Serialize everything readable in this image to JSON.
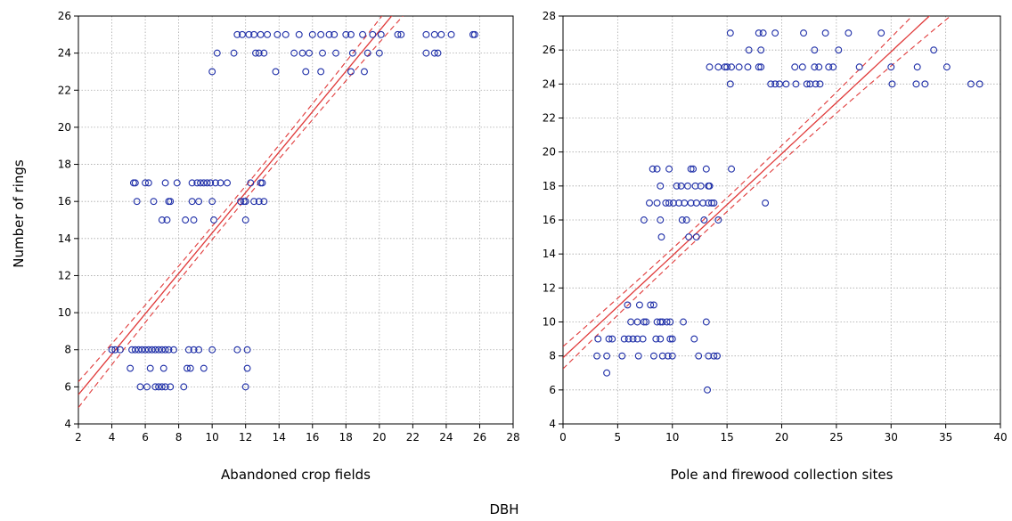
{
  "figure": {
    "ylabel": "Number of rings",
    "xlabel": "DBH"
  },
  "chart_data": [
    {
      "type": "scatter",
      "xlabel": "Abandoned crop fields",
      "ylabel": "Number of rings",
      "xlim": [
        2,
        28
      ],
      "ylim": [
        4,
        26
      ],
      "xticks": [
        2,
        4,
        6,
        8,
        10,
        12,
        14,
        16,
        18,
        20,
        22,
        24,
        26,
        28
      ],
      "yticks": [
        4,
        6,
        8,
        10,
        12,
        14,
        16,
        18,
        20,
        22,
        24,
        26
      ],
      "grid": true,
      "point_color": "#1f2fa8",
      "fit_color": "#e03a3a",
      "fit": {
        "intercept": 3.4,
        "slope": 1.09,
        "ci_offset_at_ends": 1.4,
        "ci_offset_at_mean": 0.35,
        "x_mean": 11.5
      },
      "points": [
        [
          4.0,
          8
        ],
        [
          4.2,
          8
        ],
        [
          4.5,
          8
        ],
        [
          5.2,
          8
        ],
        [
          5.4,
          8
        ],
        [
          5.6,
          8
        ],
        [
          5.8,
          8
        ],
        [
          6.0,
          8
        ],
        [
          6.2,
          8
        ],
        [
          6.4,
          8
        ],
        [
          6.6,
          8
        ],
        [
          6.8,
          8
        ],
        [
          7.0,
          8
        ],
        [
          7.2,
          8
        ],
        [
          7.4,
          8
        ],
        [
          7.7,
          8
        ],
        [
          8.6,
          8
        ],
        [
          8.9,
          8
        ],
        [
          9.2,
          8
        ],
        [
          10.0,
          8
        ],
        [
          11.5,
          8
        ],
        [
          12.1,
          8
        ],
        [
          5.1,
          7
        ],
        [
          6.3,
          7
        ],
        [
          7.1,
          7
        ],
        [
          8.5,
          7
        ],
        [
          8.7,
          7
        ],
        [
          9.5,
          7
        ],
        [
          12.1,
          7
        ],
        [
          5.7,
          6
        ],
        [
          6.1,
          6
        ],
        [
          6.6,
          6
        ],
        [
          6.8,
          6
        ],
        [
          7.0,
          6
        ],
        [
          7.2,
          6
        ],
        [
          7.5,
          6
        ],
        [
          8.3,
          6
        ],
        [
          12.0,
          6
        ],
        [
          5.3,
          17
        ],
        [
          5.4,
          17
        ],
        [
          6.0,
          17
        ],
        [
          6.2,
          17
        ],
        [
          7.2,
          17
        ],
        [
          7.9,
          17
        ],
        [
          8.8,
          17
        ],
        [
          9.1,
          17
        ],
        [
          9.3,
          17
        ],
        [
          9.5,
          17
        ],
        [
          9.7,
          17
        ],
        [
          9.9,
          17
        ],
        [
          10.2,
          17
        ],
        [
          10.5,
          17
        ],
        [
          10.9,
          17
        ],
        [
          12.3,
          17
        ],
        [
          12.9,
          17
        ],
        [
          13.0,
          17
        ],
        [
          5.5,
          16
        ],
        [
          6.5,
          16
        ],
        [
          7.4,
          16
        ],
        [
          7.5,
          16
        ],
        [
          8.8,
          16
        ],
        [
          9.2,
          16
        ],
        [
          10.0,
          16
        ],
        [
          11.7,
          16
        ],
        [
          11.9,
          16
        ],
        [
          12.0,
          16
        ],
        [
          12.5,
          16
        ],
        [
          12.8,
          16
        ],
        [
          13.1,
          16
        ],
        [
          7.0,
          15
        ],
        [
          7.3,
          15
        ],
        [
          8.4,
          15
        ],
        [
          8.9,
          15
        ],
        [
          10.1,
          15
        ],
        [
          12.0,
          15
        ],
        [
          10.0,
          23
        ],
        [
          13.8,
          23
        ],
        [
          15.6,
          23
        ],
        [
          16.5,
          23
        ],
        [
          18.3,
          23
        ],
        [
          19.1,
          23
        ],
        [
          10.3,
          24
        ],
        [
          11.3,
          24
        ],
        [
          12.6,
          24
        ],
        [
          12.8,
          24
        ],
        [
          13.1,
          24
        ],
        [
          14.9,
          24
        ],
        [
          15.4,
          24
        ],
        [
          15.8,
          24
        ],
        [
          16.6,
          24
        ],
        [
          17.4,
          24
        ],
        [
          18.4,
          24
        ],
        [
          19.3,
          24
        ],
        [
          20.0,
          24
        ],
        [
          22.8,
          24
        ],
        [
          23.3,
          24
        ],
        [
          23.5,
          24
        ],
        [
          11.5,
          25
        ],
        [
          11.8,
          25
        ],
        [
          12.2,
          25
        ],
        [
          12.5,
          25
        ],
        [
          12.9,
          25
        ],
        [
          13.3,
          25
        ],
        [
          13.9,
          25
        ],
        [
          14.4,
          25
        ],
        [
          15.2,
          25
        ],
        [
          16.0,
          25
        ],
        [
          16.5,
          25
        ],
        [
          17.0,
          25
        ],
        [
          17.3,
          25
        ],
        [
          18.0,
          25
        ],
        [
          18.3,
          25
        ],
        [
          19.0,
          25
        ],
        [
          19.6,
          25
        ],
        [
          20.1,
          25
        ],
        [
          21.1,
          25
        ],
        [
          21.3,
          25
        ],
        [
          22.8,
          25
        ],
        [
          23.3,
          25
        ],
        [
          23.7,
          25
        ],
        [
          24.3,
          25
        ],
        [
          25.6,
          25
        ],
        [
          25.7,
          25
        ]
      ]
    },
    {
      "type": "scatter",
      "xlabel": "Pole and firewood collection sites",
      "ylabel": "",
      "xlim": [
        0,
        40
      ],
      "ylim": [
        4,
        28
      ],
      "xticks": [
        0,
        5,
        10,
        15,
        20,
        25,
        30,
        35,
        40
      ],
      "yticks": [
        4,
        6,
        8,
        10,
        12,
        14,
        16,
        18,
        20,
        22,
        24,
        26,
        28
      ],
      "grid": true,
      "point_color": "#1f2fa8",
      "fit_color": "#e03a3a",
      "fit": {
        "intercept": 7.9,
        "slope": 0.6,
        "ci_offset_at_ends": 1.5,
        "ci_offset_at_mean": 0.4,
        "x_mean": 13.0
      },
      "points": [
        [
          3.2,
          9
        ],
        [
          4.2,
          9
        ],
        [
          4.5,
          9
        ],
        [
          5.6,
          9
        ],
        [
          6.0,
          9
        ],
        [
          6.4,
          9
        ],
        [
          6.8,
          9
        ],
        [
          7.3,
          9
        ],
        [
          8.5,
          9
        ],
        [
          8.9,
          9
        ],
        [
          9.8,
          9
        ],
        [
          10.0,
          9
        ],
        [
          12.0,
          9
        ],
        [
          3.1,
          8
        ],
        [
          4.0,
          8
        ],
        [
          5.4,
          8
        ],
        [
          6.9,
          8
        ],
        [
          8.3,
          8
        ],
        [
          9.1,
          8
        ],
        [
          9.6,
          8
        ],
        [
          10.0,
          8
        ],
        [
          12.4,
          8
        ],
        [
          13.3,
          8
        ],
        [
          13.8,
          8
        ],
        [
          14.1,
          8
        ],
        [
          4.0,
          7
        ],
        [
          13.2,
          6
        ],
        [
          6.2,
          10
        ],
        [
          6.8,
          10
        ],
        [
          7.4,
          10
        ],
        [
          7.6,
          10
        ],
        [
          8.6,
          10
        ],
        [
          8.9,
          10
        ],
        [
          9.1,
          10
        ],
        [
          9.5,
          10
        ],
        [
          9.8,
          10
        ],
        [
          11.0,
          10
        ],
        [
          13.1,
          10
        ],
        [
          5.9,
          11
        ],
        [
          7.0,
          11
        ],
        [
          8.0,
          11
        ],
        [
          8.3,
          11
        ],
        [
          8.2,
          19
        ],
        [
          8.6,
          19
        ],
        [
          9.7,
          19
        ],
        [
          11.7,
          19
        ],
        [
          11.9,
          19
        ],
        [
          13.1,
          19
        ],
        [
          15.4,
          19
        ],
        [
          8.9,
          18
        ],
        [
          10.4,
          18
        ],
        [
          10.8,
          18
        ],
        [
          11.4,
          18
        ],
        [
          12.1,
          18
        ],
        [
          12.6,
          18
        ],
        [
          13.3,
          18
        ],
        [
          13.4,
          18
        ],
        [
          7.9,
          17
        ],
        [
          8.6,
          17
        ],
        [
          9.4,
          17
        ],
        [
          9.7,
          17
        ],
        [
          10.1,
          17
        ],
        [
          10.6,
          17
        ],
        [
          11.1,
          17
        ],
        [
          11.7,
          17
        ],
        [
          12.2,
          17
        ],
        [
          12.8,
          17
        ],
        [
          13.3,
          17
        ],
        [
          13.6,
          17
        ],
        [
          13.8,
          17
        ],
        [
          18.5,
          17
        ],
        [
          7.4,
          16
        ],
        [
          8.9,
          16
        ],
        [
          10.9,
          16
        ],
        [
          11.3,
          16
        ],
        [
          12.9,
          16
        ],
        [
          14.2,
          16
        ],
        [
          9.0,
          15
        ],
        [
          11.5,
          15
        ],
        [
          12.2,
          15
        ],
        [
          15.3,
          27
        ],
        [
          17.9,
          27
        ],
        [
          18.3,
          27
        ],
        [
          19.4,
          27
        ],
        [
          22.0,
          27
        ],
        [
          24.0,
          27
        ],
        [
          26.1,
          27
        ],
        [
          29.1,
          27
        ],
        [
          17.0,
          26
        ],
        [
          18.1,
          26
        ],
        [
          23.0,
          26
        ],
        [
          25.2,
          26
        ],
        [
          33.9,
          26
        ],
        [
          13.4,
          25
        ],
        [
          14.2,
          25
        ],
        [
          14.8,
          25
        ],
        [
          15.0,
          25
        ],
        [
          15.4,
          25
        ],
        [
          16.1,
          25
        ],
        [
          16.9,
          25
        ],
        [
          17.9,
          25
        ],
        [
          18.1,
          25
        ],
        [
          21.2,
          25
        ],
        [
          21.9,
          25
        ],
        [
          23.0,
          25
        ],
        [
          23.4,
          25
        ],
        [
          24.3,
          25
        ],
        [
          24.7,
          25
        ],
        [
          27.1,
          25
        ],
        [
          30.0,
          25
        ],
        [
          32.4,
          25
        ],
        [
          35.1,
          25
        ],
        [
          15.3,
          24
        ],
        [
          19.0,
          24
        ],
        [
          19.4,
          24
        ],
        [
          19.8,
          24
        ],
        [
          20.4,
          24
        ],
        [
          21.3,
          24
        ],
        [
          22.3,
          24
        ],
        [
          22.6,
          24
        ],
        [
          23.1,
          24
        ],
        [
          23.5,
          24
        ],
        [
          30.1,
          24
        ],
        [
          32.3,
          24
        ],
        [
          33.1,
          24
        ],
        [
          37.3,
          24
        ],
        [
          38.1,
          24
        ]
      ]
    }
  ]
}
